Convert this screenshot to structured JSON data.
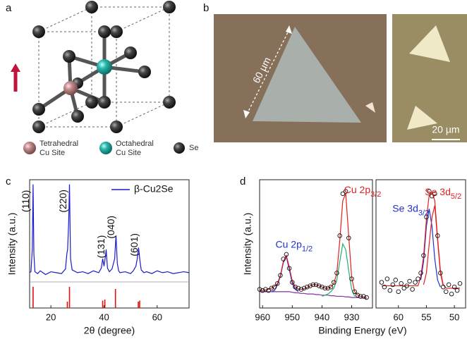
{
  "figure": {
    "a": {
      "label": "a",
      "legend": [
        {
          "line1": "Tetrahedral",
          "line2": "Cu Site"
        },
        {
          "line1": "Octahedral",
          "line2": "Cu Site"
        },
        {
          "line1": "Se"
        }
      ]
    },
    "b": {
      "label": "b",
      "scale_big": "60 µm",
      "scale_small": "20 µm"
    },
    "c": {
      "label": "c"
    },
    "d": {
      "label": "d",
      "x_label": "Binding Energy (eV)",
      "y_label": "Intensity (a.u.)"
    }
  },
  "chart_data": [
    {
      "type": "line",
      "x_label": "2θ (degree)",
      "y_label": "Intensity (a.u.)",
      "xlim": [
        12,
        72
      ],
      "xticks": [
        20,
        40,
        60
      ],
      "ylim": [
        -33,
        105
      ],
      "legend": "upper right",
      "x": [
        12,
        12.5,
        13,
        13.3,
        13.6,
        14,
        15,
        16,
        18,
        20,
        22,
        24,
        25.5,
        26,
        26.3,
        26.7,
        27,
        27.4,
        28,
        30,
        32,
        34,
        36,
        38,
        39,
        39.5,
        40,
        40.5,
        40.8,
        41.3,
        42,
        43,
        44,
        44.5,
        45,
        45.5,
        46,
        48,
        50,
        51,
        52,
        52.5,
        53,
        53.5,
        54,
        55,
        56,
        58,
        60,
        62,
        64,
        66,
        68,
        70,
        72
      ],
      "series": [
        {
          "name": "β-Cu2Se",
          "color": "#1a1ad0",
          "values": [
            5,
            6,
            30,
            100,
            25,
            6,
            4,
            7,
            3,
            6,
            5,
            4,
            9,
            25,
            30,
            60,
            100,
            20,
            8,
            5,
            6,
            4,
            7,
            5,
            10,
            20,
            12,
            22,
            30,
            10,
            6,
            9,
            20,
            45,
            15,
            7,
            5,
            6,
            4,
            7,
            12,
            20,
            32,
            18,
            8,
            5,
            6,
            4,
            7,
            5,
            6,
            4,
            5,
            6,
            5
          ]
        }
      ],
      "annotations": [
        {
          "x": 10.7,
          "y": 82,
          "text": "(110)",
          "rotation": -90
        },
        {
          "x": 24.7,
          "y": 82,
          "text": "(220)",
          "rotation": -90
        },
        {
          "x": 39.1,
          "y": 33,
          "text": "(131)",
          "rotation": -90
        },
        {
          "x": 42.8,
          "y": 54,
          "text": "(040)",
          "rotation": -90
        },
        {
          "x": 51.5,
          "y": 35,
          "text": "(601)",
          "rotation": -90
        }
      ],
      "reference": {
        "color": "#e01010",
        "x": [
          13.3,
          26.2,
          27,
          39.5,
          40.3,
          44.3,
          52.9,
          53.4
        ],
        "values": [
          100,
          30,
          100,
          35,
          40,
          90,
          30,
          35
        ]
      }
    },
    {
      "type": "line",
      "xlim": [
        961,
        923
      ],
      "xticks": [
        960,
        950,
        940,
        930
      ],
      "ylim": [
        0,
        110
      ],
      "x": [
        961,
        960,
        959,
        958,
        957,
        956,
        955,
        954,
        953,
        952,
        951,
        950,
        949,
        948,
        947,
        946,
        945,
        944,
        943,
        942,
        941,
        940,
        939,
        938,
        937,
        936,
        935,
        934,
        933,
        932,
        931,
        930,
        929,
        928,
        927,
        926,
        925
      ],
      "series": [
        {
          "color": "#8030a0",
          "values": [
            14,
            14,
            14,
            14,
            14,
            14,
            14,
            14,
            14,
            14,
            14,
            13.5,
            13,
            13,
            12.5,
            12.5,
            12,
            12,
            12,
            11.5,
            11.5,
            11,
            11,
            11,
            10.5,
            10.5,
            10,
            10,
            10,
            9.5,
            9.5,
            9,
            9,
            9,
            8.5,
            8.5,
            8
          ]
        },
        {
          "color": "#2030d0",
          "values": [
            null,
            null,
            null,
            null,
            14,
            15,
            20,
            27,
            39,
            44,
            33,
            21,
            16,
            14,
            null,
            null,
            null,
            null,
            null,
            null,
            null,
            null,
            null,
            null,
            null,
            null,
            null,
            null,
            null,
            null,
            null,
            null,
            null,
            null,
            null,
            null,
            null
          ]
        },
        {
          "color": "#20b070",
          "values": [
            null,
            null,
            null,
            null,
            null,
            null,
            null,
            null,
            null,
            null,
            null,
            null,
            null,
            null,
            null,
            null,
            null,
            null,
            null,
            null,
            null,
            10,
            11,
            12,
            14,
            17,
            24,
            40,
            55,
            50,
            32,
            16,
            10,
            null,
            null,
            null,
            null
          ]
        },
        {
          "color": "#e02020",
          "values": [
            15,
            15,
            15.5,
            16,
            17,
            18.5,
            21,
            28,
            40,
            45,
            35,
            23,
            18,
            16.5,
            16,
            16.5,
            17.5,
            19,
            20,
            20,
            19,
            18,
            17,
            17,
            18,
            21,
            30,
            58,
            92,
            98,
            62,
            26,
            14,
            11,
            10,
            9.5,
            9
          ]
        },
        {
          "color": "#111111",
          "marker": "circle",
          "values": [
            16,
            15,
            16,
            15,
            17,
            18,
            21,
            28,
            42,
            46,
            34,
            22,
            18,
            17,
            16,
            17,
            18,
            19,
            20,
            20,
            19,
            18,
            17,
            17,
            18,
            22,
            30,
            62,
            98,
            100,
            60,
            25,
            14,
            11,
            10,
            10,
            9
          ]
        }
      ],
      "annotations": [
        {
          "x": 949.4,
          "y": 54,
          "text": "Cu 2p",
          "sub": "1/2",
          "color": "#2030d0"
        },
        {
          "x": 926.3,
          "y": 101,
          "text": "Cu 2p",
          "sub": "3/2",
          "color": "#e02020"
        }
      ]
    },
    {
      "type": "line",
      "xlim": [
        64,
        48
      ],
      "xticks": [
        60,
        55,
        50
      ],
      "ylim": [
        0,
        110
      ],
      "x": [
        63,
        62.5,
        62,
        61.5,
        61,
        60.5,
        60,
        59.5,
        59,
        58.5,
        58,
        57.5,
        57,
        56.5,
        56,
        55.5,
        55,
        54.5,
        54,
        53.5,
        53,
        52.5,
        52,
        51.5,
        51,
        50.5,
        50,
        49.5,
        49
      ],
      "series": [
        {
          "color": "#2030d0",
          "values": [
            null,
            null,
            null,
            null,
            null,
            null,
            null,
            null,
            null,
            null,
            null,
            null,
            null,
            null,
            24,
            40,
            70,
            85,
            70,
            42,
            24,
            18,
            null,
            null,
            null,
            null,
            null,
            null,
            null
          ]
        },
        {
          "color": "#e02020",
          "values": [
            null,
            null,
            null,
            null,
            null,
            null,
            null,
            null,
            null,
            null,
            null,
            null,
            null,
            null,
            null,
            20,
            30,
            55,
            78,
            88,
            58,
            30,
            19,
            null,
            null,
            null,
            null,
            null,
            null
          ]
        },
        {
          "color": "#e02020",
          "values": [
            19,
            19,
            19,
            19,
            19,
            19,
            19,
            19,
            19,
            19,
            19,
            19,
            19,
            19,
            27,
            44,
            76,
            97,
            99,
            92,
            60,
            32,
            20,
            17,
            17,
            17,
            17,
            17,
            17
          ]
        },
        {
          "color": "#111111",
          "marker": "circle",
          "values": [
            22,
            18,
            25,
            15,
            20,
            24,
            14,
            21,
            17,
            19,
            23,
            16,
            22,
            25,
            30,
            45,
            78,
            100,
            96,
            98,
            62,
            30,
            18,
            14,
            20,
            12,
            18,
            15,
            21
          ]
        }
      ],
      "annotations": [
        {
          "x": 57.8,
          "y": 85,
          "text": "Se 3d",
          "sub": "3/2",
          "color": "#2030d0"
        },
        {
          "x": 52.0,
          "y": 99,
          "text": "Se 3d",
          "sub": "5/2",
          "color": "#e02020"
        }
      ]
    }
  ]
}
